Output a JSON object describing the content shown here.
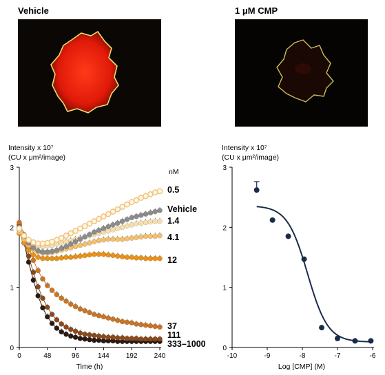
{
  "images": [
    {
      "label": "Vehicle"
    },
    {
      "label": "1 μM CMP"
    }
  ],
  "chart_data": [
    {
      "type": "line",
      "ylabel_line1": "Intensity x 10⁷",
      "ylabel_line2": "(CU x μm²/image)",
      "xlabel": "Time (h)",
      "xlim": [
        0,
        240
      ],
      "ylim": [
        0,
        3
      ],
      "xticks": [
        0,
        48,
        96,
        144,
        192,
        240
      ],
      "yticks": [
        0,
        1,
        2,
        3
      ],
      "legend_title": "nM",
      "x": [
        0,
        8,
        16,
        24,
        32,
        40,
        48,
        56,
        64,
        72,
        80,
        88,
        96,
        104,
        112,
        120,
        128,
        136,
        144,
        152,
        160,
        168,
        176,
        184,
        192,
        200,
        208,
        216,
        224,
        232,
        240
      ],
      "series": [
        {
          "name": "0.5",
          "color": "#f0c27a",
          "fill": "#fff7e6",
          "open": true,
          "values": [
            1.98,
            1.86,
            1.79,
            1.75,
            1.73,
            1.73,
            1.74,
            1.76,
            1.79,
            1.82,
            1.86,
            1.9,
            1.94,
            1.98,
            2.02,
            2.06,
            2.1,
            2.14,
            2.18,
            2.22,
            2.26,
            2.3,
            2.34,
            2.38,
            2.42,
            2.45,
            2.49,
            2.52,
            2.55,
            2.58,
            2.6
          ]
        },
        {
          "name": "Vehicle",
          "color": "#8c8c8c",
          "fill": "#8c8c8c",
          "open": false,
          "values": [
            2.0,
            1.85,
            1.74,
            1.66,
            1.61,
            1.59,
            1.59,
            1.6,
            1.62,
            1.65,
            1.68,
            1.72,
            1.76,
            1.8,
            1.84,
            1.88,
            1.92,
            1.95,
            1.98,
            2.01,
            2.04,
            2.07,
            2.1,
            2.13,
            2.16,
            2.18,
            2.2,
            2.22,
            2.24,
            2.26,
            2.28
          ]
        },
        {
          "name": "1.4",
          "color": "#f6dfad",
          "fill": "#f6dfad",
          "open": false,
          "values": [
            1.96,
            1.84,
            1.76,
            1.71,
            1.69,
            1.68,
            1.69,
            1.7,
            1.72,
            1.74,
            1.76,
            1.78,
            1.8,
            1.82,
            1.84,
            1.86,
            1.88,
            1.9,
            1.92,
            1.94,
            1.96,
            1.98,
            2.0,
            2.02,
            2.04,
            2.06,
            2.07,
            2.08,
            2.09,
            2.1,
            2.1
          ]
        },
        {
          "name": "4.1",
          "color": "#f2c070",
          "fill": "#f2c070",
          "open": false,
          "values": [
            1.92,
            1.8,
            1.7,
            1.63,
            1.59,
            1.57,
            1.57,
            1.58,
            1.6,
            1.62,
            1.64,
            1.66,
            1.68,
            1.7,
            1.72,
            1.74,
            1.76,
            1.78,
            1.79,
            1.8,
            1.8,
            1.8,
            1.8,
            1.81,
            1.82,
            1.83,
            1.84,
            1.85,
            1.85,
            1.85,
            1.86
          ]
        },
        {
          "name": "12",
          "color": "#e8921a",
          "fill": "#e8921a",
          "open": false,
          "values": [
            1.9,
            1.74,
            1.62,
            1.54,
            1.5,
            1.48,
            1.48,
            1.48,
            1.48,
            1.49,
            1.5,
            1.5,
            1.51,
            1.52,
            1.53,
            1.54,
            1.55,
            1.55,
            1.55,
            1.54,
            1.53,
            1.52,
            1.51,
            1.5,
            1.5,
            1.49,
            1.49,
            1.48,
            1.48,
            1.48,
            1.48
          ]
        },
        {
          "name": "37",
          "color": "#c8752a",
          "fill": "#c8752a",
          "open": false,
          "values": [
            2.08,
            1.88,
            1.66,
            1.45,
            1.28,
            1.14,
            1.03,
            0.95,
            0.88,
            0.82,
            0.77,
            0.72,
            0.68,
            0.64,
            0.61,
            0.58,
            0.55,
            0.53,
            0.51,
            0.49,
            0.47,
            0.45,
            0.43,
            0.42,
            0.41,
            0.39,
            0.38,
            0.37,
            0.36,
            0.35,
            0.34
          ]
        },
        {
          "name": "111",
          "color": "#8a4a1c",
          "fill": "#8a4a1c",
          "open": false,
          "values": [
            2.05,
            1.8,
            1.52,
            1.25,
            1.01,
            0.82,
            0.67,
            0.55,
            0.46,
            0.39,
            0.34,
            0.3,
            0.27,
            0.24,
            0.22,
            0.21,
            0.2,
            0.19,
            0.18,
            0.17,
            0.17,
            0.16,
            0.16,
            0.15,
            0.15,
            0.15,
            0.14,
            0.14,
            0.14,
            0.14,
            0.14
          ]
        },
        {
          "name": "333–1000",
          "color": "#2a1a12",
          "fill": "#2a1a12",
          "open": false,
          "values": [
            2.02,
            1.74,
            1.42,
            1.12,
            0.86,
            0.66,
            0.51,
            0.4,
            0.32,
            0.26,
            0.22,
            0.19,
            0.17,
            0.15,
            0.14,
            0.13,
            0.12,
            0.12,
            0.11,
            0.11,
            0.11,
            0.1,
            0.1,
            0.1,
            0.1,
            0.1,
            0.1,
            0.1,
            0.1,
            0.1,
            0.1
          ]
        }
      ]
    },
    {
      "type": "scatter",
      "ylabel_line1": "Intensity x 10⁷",
      "ylabel_line2": "(CU x μm²/image)",
      "xlabel": "Log [CMP] (M)",
      "xlim": [
        -10,
        -6
      ],
      "ylim": [
        0,
        3
      ],
      "xticks": [
        -10,
        -9,
        -8,
        -7,
        -6
      ],
      "yticks": [
        0,
        1,
        2,
        3
      ],
      "color": "#1a2b4a",
      "points": [
        {
          "x": -9.3,
          "y": 2.62,
          "err": 0.14
        },
        {
          "x": -8.85,
          "y": 2.12
        },
        {
          "x": -8.4,
          "y": 1.85
        },
        {
          "x": -7.95,
          "y": 1.47
        },
        {
          "x": -7.45,
          "y": 0.33
        },
        {
          "x": -7.0,
          "y": 0.15
        },
        {
          "x": -6.5,
          "y": 0.11
        },
        {
          "x": -6.05,
          "y": 0.11
        }
      ],
      "fit": {
        "top": 2.36,
        "bottom": 0.09,
        "log_ic50": -7.85,
        "hill": -1.5
      }
    }
  ]
}
